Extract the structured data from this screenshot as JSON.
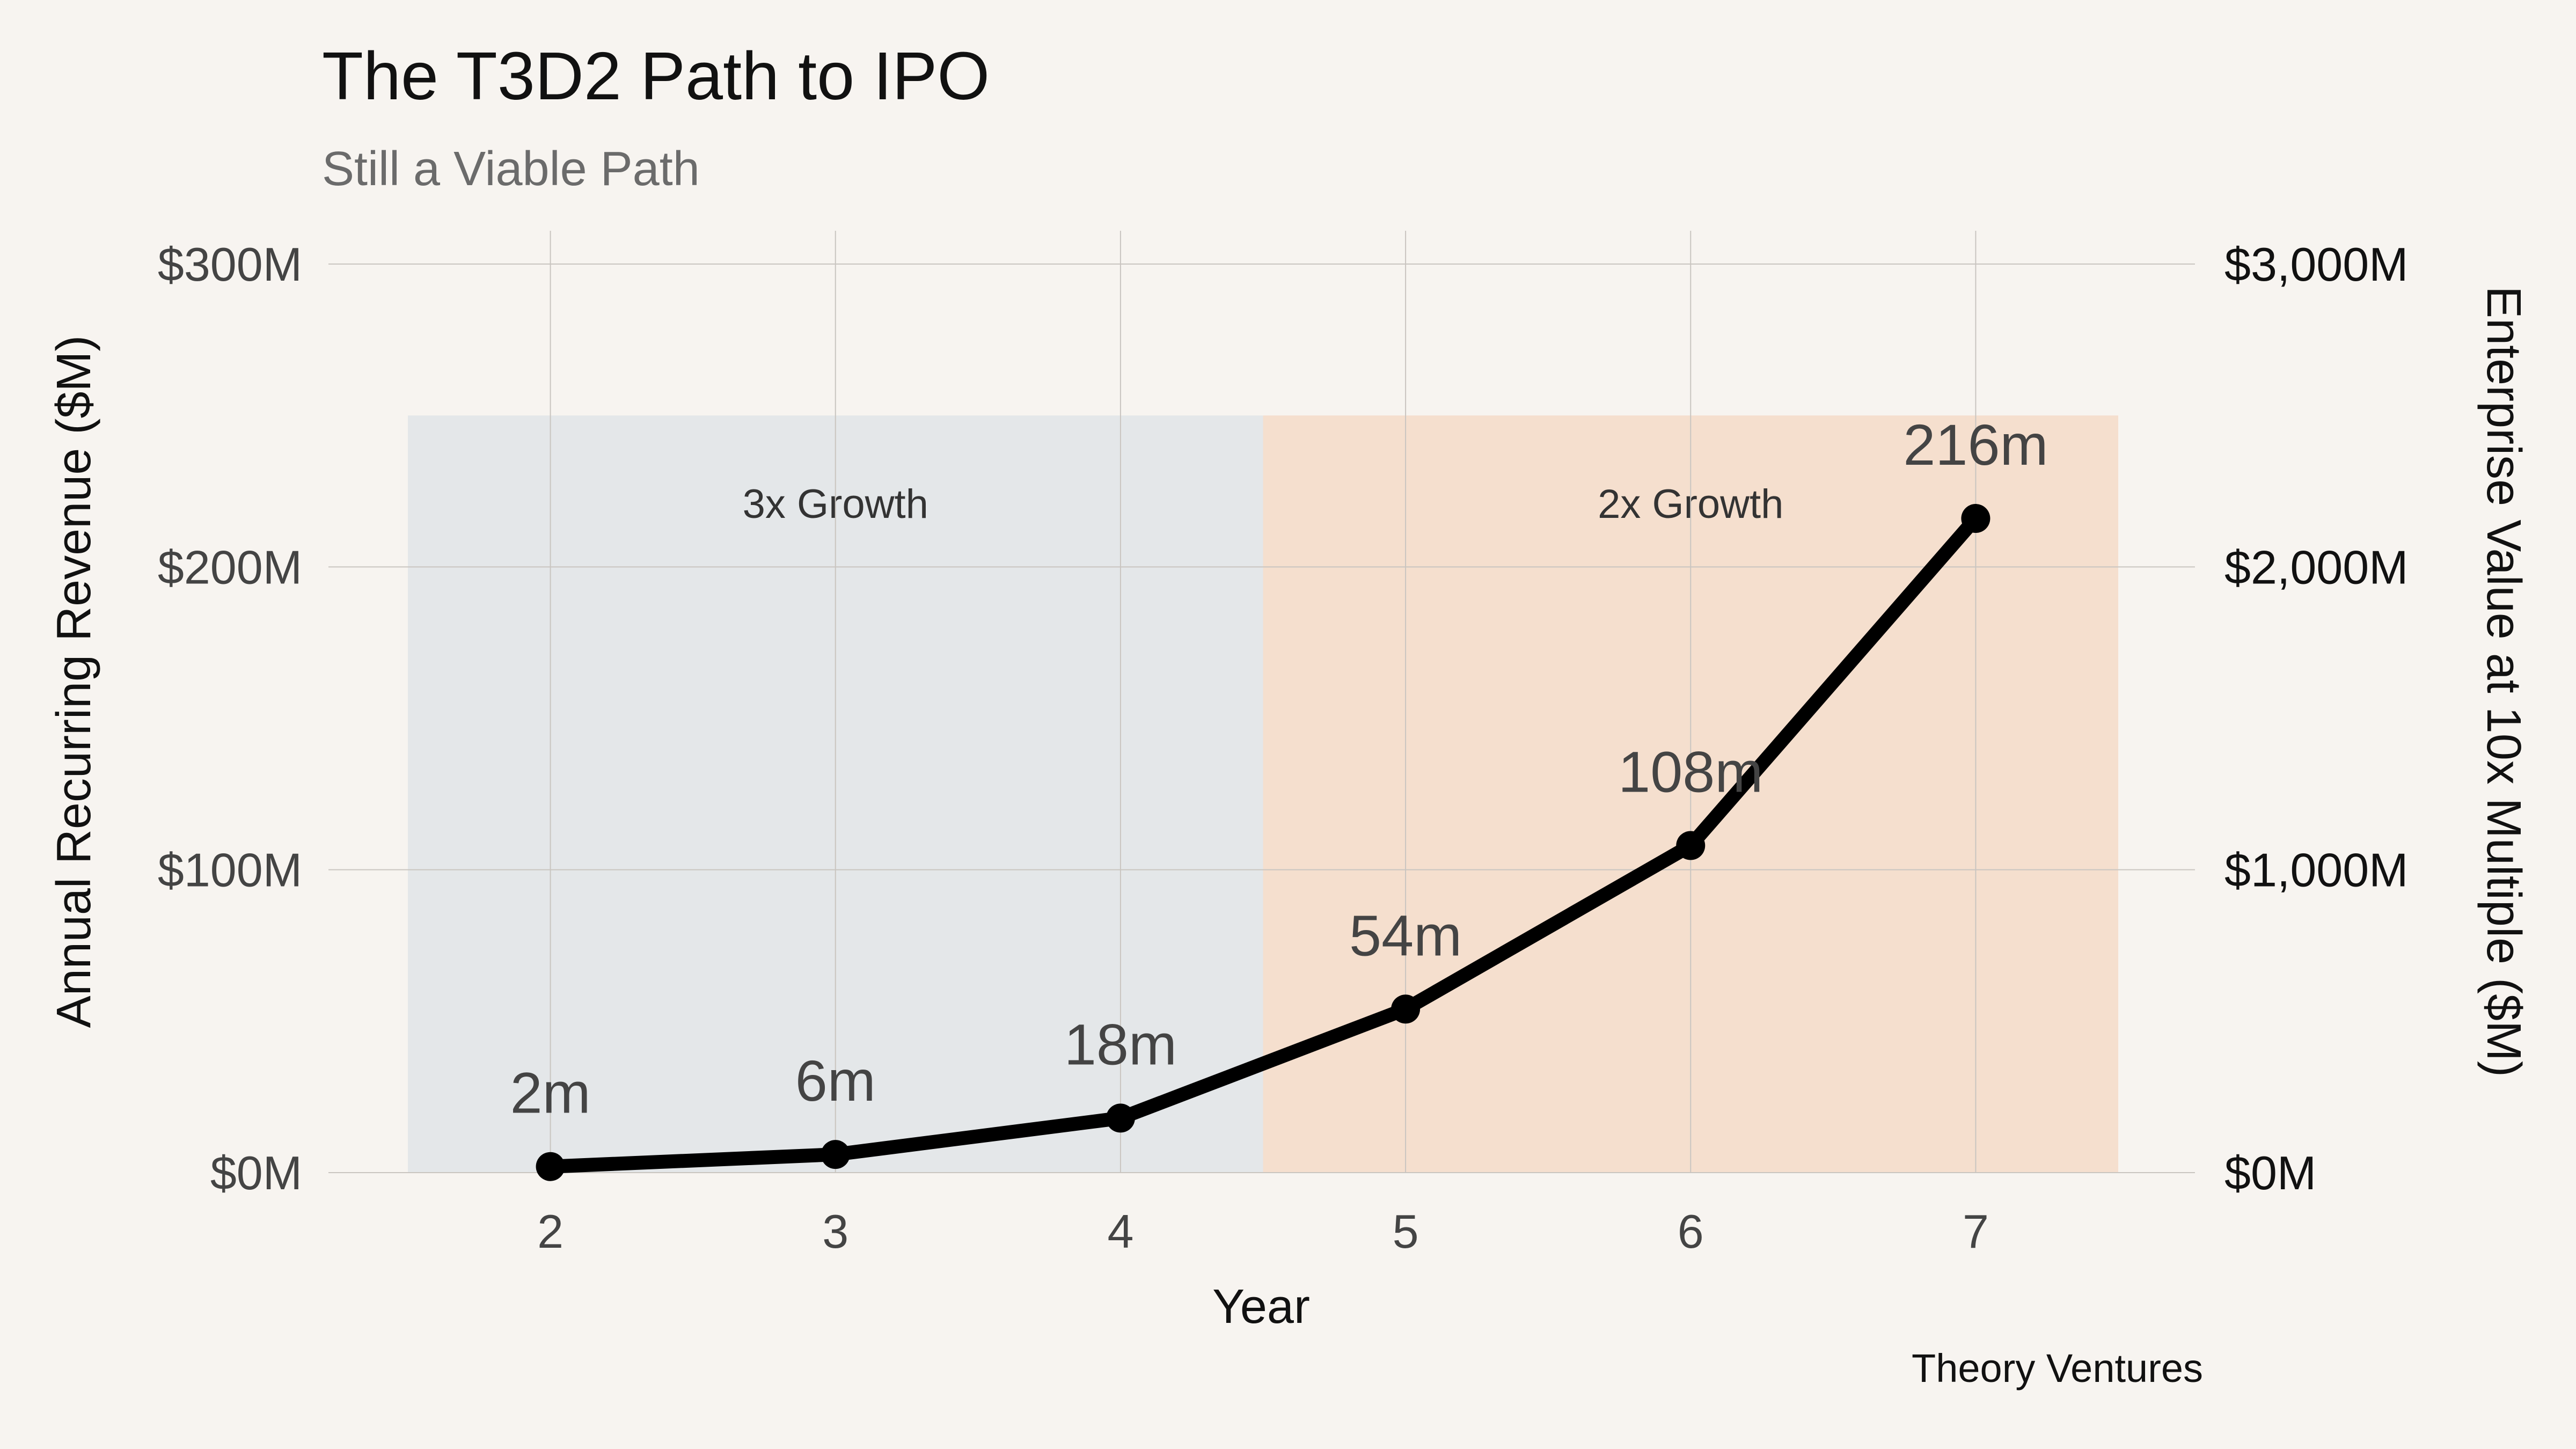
{
  "chart_data": {
    "type": "line",
    "title": "The T3D2 Path to IPO",
    "subtitle": "Still a Viable Path",
    "xlabel": "Year",
    "ylabel": "Annual Recurring Revenue ($M)",
    "ylabel_right": "Enterprise Value at 10x Multiple ($M)",
    "x": [
      2,
      3,
      4,
      5,
      6,
      7
    ],
    "values": [
      2,
      6,
      18,
      54,
      108,
      216
    ],
    "point_labels": [
      "2m",
      "6m",
      "18m",
      "54m",
      "108m",
      "216m"
    ],
    "xlim": [
      1.5,
      7.5
    ],
    "ylim": [
      0,
      300
    ],
    "x_ticks": [
      2,
      3,
      4,
      5,
      6,
      7
    ],
    "x_tick_labels": [
      "2",
      "3",
      "4",
      "5",
      "6",
      "7"
    ],
    "y_ticks": [
      0,
      100,
      200,
      300
    ],
    "y_tick_labels": [
      "$0M",
      "$100M",
      "$200M",
      "$300M"
    ],
    "y_right_tick_labels": [
      "$0M",
      "$1,000M",
      "$2,000M",
      "$3,000M"
    ],
    "regions": [
      {
        "label": "3x Growth",
        "x_start": 1.5,
        "x_end": 4.5,
        "y_top": 250,
        "color": "#e4e7e9"
      },
      {
        "label": "2x Growth",
        "x_start": 4.5,
        "x_end": 7.5,
        "y_top": 250,
        "color": "#f5dfce"
      }
    ],
    "line_color": "#000000",
    "grid": true,
    "source": "Theory Ventures"
  }
}
